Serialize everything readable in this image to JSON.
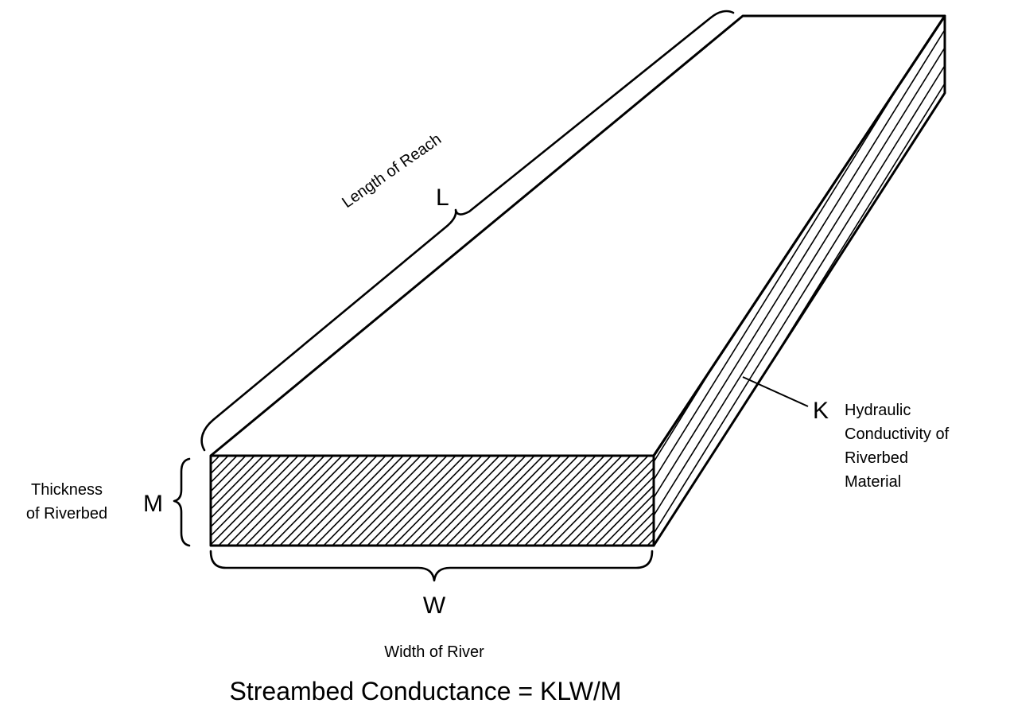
{
  "labels": {
    "length_caption": "Length of Reach",
    "length_symbol": "L",
    "thickness_caption_line1": "Thickness",
    "thickness_caption_line2": "of Riverbed",
    "thickness_symbol": "M",
    "width_symbol": "W",
    "width_caption": "Width of River",
    "conductivity_symbol": "K",
    "conductivity_caption_line1": "Hydraulic",
    "conductivity_caption_line2": "Conductivity of",
    "conductivity_caption_line3": "Riverbed",
    "conductivity_caption_line4": "Material"
  },
  "formula": "Streambed Conductance = KLW/M",
  "colors": {
    "ink": "#000000",
    "paper": "#ffffff"
  }
}
